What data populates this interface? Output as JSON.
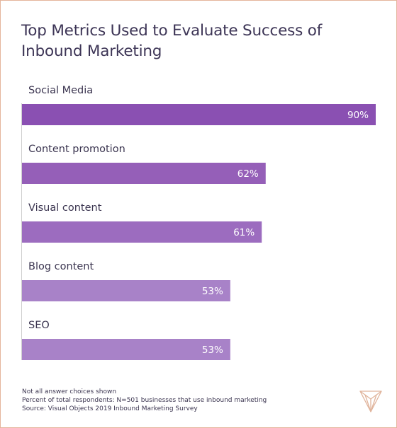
{
  "chart_data": {
    "type": "bar",
    "orientation": "horizontal",
    "title": "Top Metrics Used to Evaluate Success of Inbound Marketing",
    "categories": [
      "Social Media",
      "Content promotion",
      "Visual content",
      "Blog content",
      "SEO"
    ],
    "values": [
      90,
      62,
      61,
      53,
      53
    ],
    "value_labels": [
      "90%",
      "62%",
      "61%",
      "53%",
      "53%"
    ],
    "xlim": [
      0,
      90
    ],
    "grid": false,
    "legend": "none",
    "colors": [
      "#8a50b2",
      "#955fb8",
      "#9c6cbf",
      "#a882c8",
      "#a882c8"
    ]
  },
  "footer": {
    "line1": "Not all answer choices shown",
    "line2": "Percent of total respondents: N=501 businesses that use inbound marketing",
    "line3": "Source: Visual Objects 2019 Inbound Marketing Survey"
  },
  "colors": {
    "border": "#e4b59b",
    "axis": "#cfcfcf",
    "text": "#3b3550",
    "logo": "#e0b49c"
  },
  "logo_icon": "visual-objects-logo-icon"
}
